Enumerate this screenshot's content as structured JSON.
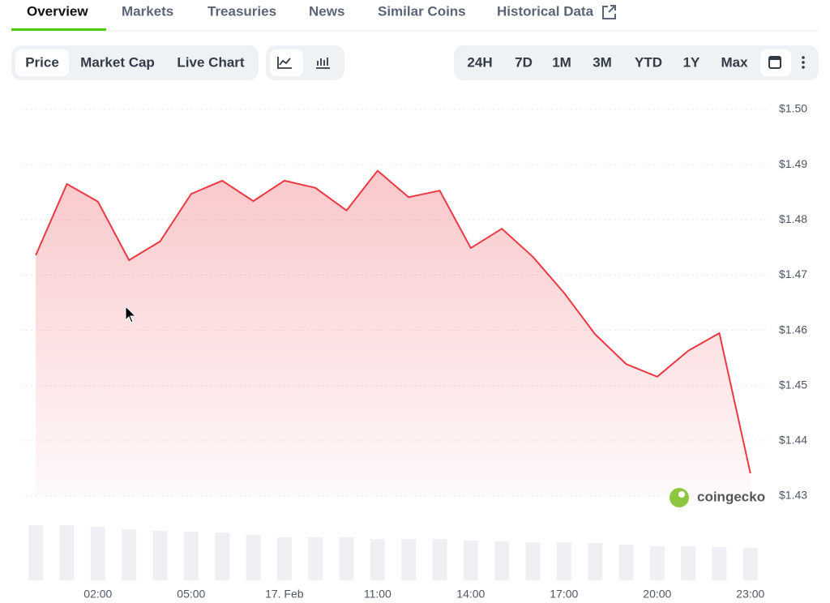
{
  "tabs": [
    "Overview",
    "Markets",
    "Treasuries",
    "News",
    "Similar Coins",
    "Historical Data"
  ],
  "chart_tabs": [
    "Price",
    "Market Cap",
    "Live Chart"
  ],
  "ranges": [
    "24H",
    "7D",
    "1M",
    "3M",
    "YTD",
    "1Y",
    "Max"
  ],
  "watermark": "coingecko",
  "chart_data": {
    "type": "line",
    "x": [
      0,
      1,
      2,
      3,
      4,
      5,
      6,
      7,
      8,
      9,
      10,
      11,
      12,
      13,
      14,
      15,
      16,
      17,
      18,
      19,
      20,
      21,
      22,
      23
    ],
    "series": [
      {
        "color": "#ea3943",
        "values": [
          1.4736,
          1.4865,
          1.4833,
          1.4727,
          1.4761,
          1.4847,
          1.4871,
          1.4834,
          1.4871,
          1.4858,
          1.4817,
          1.4889,
          1.4841,
          1.4853,
          1.4749,
          1.4784,
          1.4733,
          1.4668,
          1.4593,
          1.4539,
          1.4516,
          1.4563,
          1.4595,
          1.4341
        ]
      }
    ],
    "volume": {
      "color": "#eef0f4",
      "values": [
        68,
        68,
        66,
        63,
        61,
        60,
        59,
        56,
        53,
        53,
        53,
        51,
        51,
        51,
        49,
        48,
        47,
        47,
        46,
        44,
        42,
        42,
        41,
        40
      ]
    },
    "xlim": [
      -0.5,
      23.5
    ],
    "xticks": [
      {
        "value": 2,
        "label": "02:00"
      },
      {
        "value": 5,
        "label": "05:00"
      },
      {
        "value": 8,
        "label": "17. Feb"
      },
      {
        "value": 11,
        "label": "11:00"
      },
      {
        "value": 14,
        "label": "14:00"
      },
      {
        "value": 17,
        "label": "17:00"
      },
      {
        "value": 20,
        "label": "20:00"
      },
      {
        "value": 23,
        "label": "23:00"
      }
    ],
    "ylim": [
      1.43,
      1.5
    ],
    "yticks": [
      {
        "value": 1.5,
        "label": "$1.50"
      },
      {
        "value": 1.49,
        "label": "$1.49"
      },
      {
        "value": 1.48,
        "label": "$1.48"
      },
      {
        "value": 1.47,
        "label": "$1.47"
      },
      {
        "value": 1.46,
        "label": "$1.46"
      },
      {
        "value": 1.45,
        "label": "$1.45"
      },
      {
        "value": 1.44,
        "label": "$1.44"
      },
      {
        "value": 1.43,
        "label": "$1.43"
      }
    ],
    "grid": true
  }
}
